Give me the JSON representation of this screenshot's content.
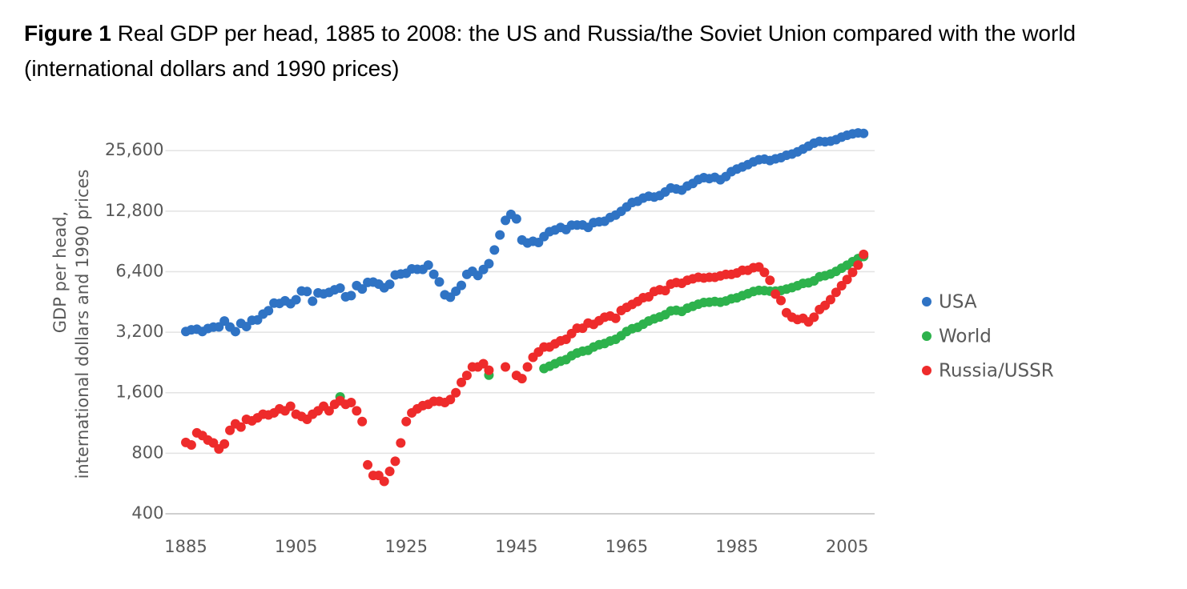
{
  "chart_data": {
    "type": "scatter",
    "title_label": "Figure 1",
    "title": "Real GDP per head, 1885 to 2008: the US and Russia/the Soviet Union compared with the world (international dollars and 1990 prices)",
    "ylabel": [
      "GDP per head,",
      "international dollars and 1990 prices"
    ],
    "log_y": true,
    "grid": true,
    "legend": "right",
    "xlim": [
      1881,
      2010
    ],
    "xticks": [
      1885,
      1905,
      1925,
      1945,
      1965,
      1985,
      2005
    ],
    "ylim": [
      400,
      36000
    ],
    "yticks": [
      400,
      800,
      {
        "value": 1600,
        "label": "1,600"
      },
      {
        "value": 3200,
        "label": "3,200"
      },
      {
        "value": 6400,
        "label": "6,400"
      },
      {
        "value": 12800,
        "label": "12,800"
      },
      {
        "value": 25600,
        "label": "25,600"
      }
    ],
    "x": [
      1885,
      1886,
      1887,
      1888,
      1889,
      1890,
      1891,
      1892,
      1893,
      1894,
      1895,
      1896,
      1897,
      1898,
      1899,
      1900,
      1901,
      1902,
      1903,
      1904,
      1905,
      1906,
      1907,
      1908,
      1909,
      1910,
      1911,
      1912,
      1913,
      1914,
      1915,
      1916,
      1917,
      1918,
      1919,
      1920,
      1921,
      1922,
      1923,
      1924,
      1925,
      1926,
      1927,
      1928,
      1929,
      1930,
      1931,
      1932,
      1933,
      1934,
      1935,
      1936,
      1937,
      1938,
      1939,
      1940,
      1941,
      1942,
      1943,
      1944,
      1945,
      1946,
      1947,
      1948,
      1949,
      1950,
      1951,
      1952,
      1953,
      1954,
      1955,
      1956,
      1957,
      1958,
      1959,
      1960,
      1961,
      1962,
      1963,
      1964,
      1965,
      1966,
      1967,
      1968,
      1969,
      1970,
      1971,
      1972,
      1973,
      1974,
      1975,
      1976,
      1977,
      1978,
      1979,
      1980,
      1981,
      1982,
      1983,
      1984,
      1985,
      1986,
      1987,
      1988,
      1989,
      1990,
      1991,
      1992,
      1993,
      1994,
      1995,
      1996,
      1997,
      1998,
      1999,
      2000,
      2001,
      2002,
      2003,
      2004,
      2005,
      2006,
      2007,
      2008
    ],
    "series": [
      {
        "name": "USA",
        "color": "#2f73c4",
        "values": [
          3226,
          3289,
          3310,
          3225,
          3338,
          3392,
          3401,
          3639,
          3394,
          3223,
          3539,
          3413,
          3667,
          3684,
          3935,
          4091,
          4464,
          4447,
          4582,
          4432,
          4642,
          5129,
          5097,
          4561,
          5017,
          4964,
          5046,
          5201,
          5301,
          4799,
          4864,
          5459,
          5248,
          5659,
          5680,
          5552,
          5323,
          5540,
          6164,
          6233,
          6282,
          6609,
          6576,
          6569,
          6899,
          6213,
          5691,
          4908,
          4777,
          5114,
          5467,
          6204,
          6430,
          6126,
          6561,
          7010,
          8206,
          9741,
          11518,
          12333,
          11709,
          9197,
          8886,
          9065,
          8944,
          9561,
          10116,
          10316,
          10613,
          10359,
          10897,
          10914,
          10920,
          10631,
          11230,
          11328,
          11402,
          11905,
          12242,
          12773,
          13419,
          14134,
          14330,
          14863,
          15179,
          15030,
          15304,
          15944,
          16689,
          16491,
          16284,
          17052,
          17567,
          18373,
          18789,
          18577,
          18856,
          18325,
          19025,
          20123,
          20717,
          21236,
          21788,
          22499,
          23059,
          23201,
          22849,
          23298,
          23616,
          24264,
          24603,
          25231,
          26064,
          26948,
          27880,
          28467,
          28321,
          28529,
          29035,
          29868,
          30526,
          31021,
          31358,
          31178
        ]
      },
      {
        "name": "World",
        "color": "#2db24c",
        "values": [
          null,
          null,
          null,
          null,
          null,
          null,
          null,
          null,
          null,
          null,
          null,
          null,
          null,
          null,
          null,
          null,
          null,
          null,
          null,
          null,
          null,
          null,
          null,
          null,
          null,
          null,
          null,
          null,
          1525,
          null,
          null,
          null,
          null,
          null,
          null,
          null,
          null,
          null,
          null,
          null,
          null,
          null,
          null,
          null,
          null,
          null,
          null,
          null,
          null,
          null,
          null,
          null,
          null,
          null,
          null,
          1958,
          null,
          null,
          null,
          null,
          null,
          null,
          null,
          null,
          null,
          2111,
          2168,
          2231,
          2295,
          2337,
          2443,
          2520,
          2573,
          2600,
          2699,
          2773,
          2810,
          2894,
          2950,
          3073,
          3224,
          3329,
          3384,
          3508,
          3637,
          3729,
          3807,
          3908,
          4083,
          4112,
          4062,
          4212,
          4304,
          4410,
          4498,
          4513,
          4550,
          4510,
          4576,
          4689,
          4744,
          4864,
          4972,
          5098,
          5167,
          5151,
          5120,
          5124,
          5157,
          5240,
          5330,
          5452,
          5597,
          5632,
          5759,
          6038,
          6114,
          6232,
          6418,
          6662,
          6894,
          7173,
          7433,
          7614
        ]
      },
      {
        "name": "Russia/USSR",
        "color": "#ee2b2b",
        "values": [
          905,
          880,
          1010,
          980,
          930,
          900,
          840,
          890,
          1040,
          1120,
          1080,
          1180,
          1160,
          1200,
          1250,
          1240,
          1270,
          1330,
          1300,
          1370,
          1250,
          1220,
          1180,
          1250,
          1300,
          1370,
          1300,
          1400,
          1460,
          1400,
          1430,
          1300,
          1150,
          700,
          620,
          620,
          580,
          650,
          730,
          900,
          1150,
          1270,
          1330,
          1380,
          1400,
          1450,
          1450,
          1430,
          1480,
          1600,
          1800,
          1950,
          2150,
          2150,
          2230,
          2070,
          null,
          null,
          2150,
          null,
          1950,
          1880,
          2150,
          2400,
          2550,
          2700,
          2700,
          2800,
          2900,
          2950,
          3150,
          3350,
          3350,
          3550,
          3500,
          3650,
          3800,
          3850,
          3750,
          4100,
          4250,
          4400,
          4550,
          4750,
          4800,
          5100,
          5200,
          5150,
          5550,
          5650,
          5600,
          5800,
          5900,
          6000,
          5950,
          6000,
          6000,
          6100,
          6200,
          6200,
          6300,
          6500,
          6500,
          6700,
          6750,
          6350,
          5800,
          4950,
          4600,
          4000,
          3800,
          3700,
          3750,
          3600,
          3800,
          4150,
          4350,
          4650,
          5050,
          5450,
          5850,
          6350,
          6900,
          7800
        ]
      }
    ]
  }
}
